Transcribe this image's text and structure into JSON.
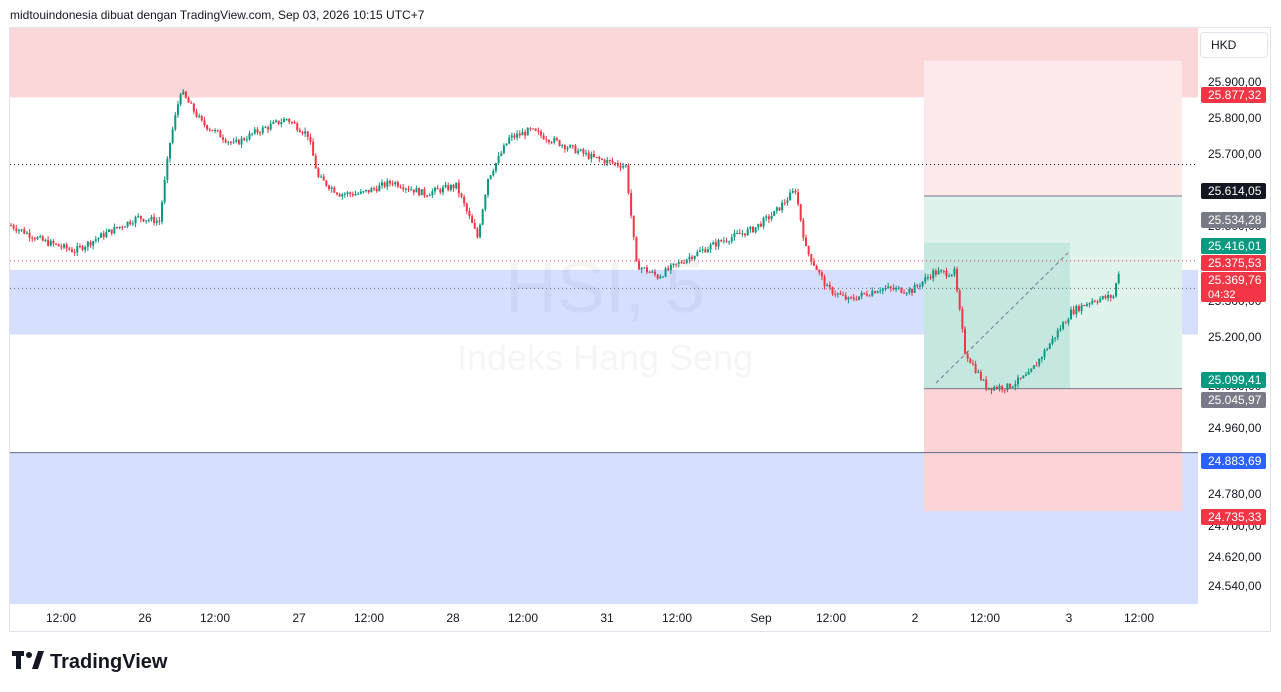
{
  "header": {
    "title": "midtouindonesia dibuat dengan TradingView.com, Sep 03, 2026 10:15 UTC+7"
  },
  "currency": "HKD",
  "watermark": {
    "symbol": "HSI, 5",
    "name": "Indeks Hang Seng"
  },
  "footer": {
    "logo_text": "TradingView"
  },
  "colors": {
    "up": "#089981",
    "down": "#f23645",
    "supply_zone": "#fcd7da",
    "demand_zone": "#d6e0fe",
    "target_zone": "#dff2ec",
    "stop_zone": "#fcd3d6"
  },
  "chart_data": {
    "type": "candlestick",
    "x_tick_labels": [
      "12:00",
      "26",
      "12:00",
      "27",
      "12:00",
      "28",
      "12:00",
      "31",
      "12:00",
      "Sep",
      "12:00",
      "2",
      "12:00",
      "3",
      "12:00"
    ],
    "y_tick_labels": [
      "25.900,00",
      "25.800,00",
      "25.700,00",
      "25.500,00",
      "25.300,00",
      "25.200,00",
      "25.000,00",
      "24.960,00",
      "24.880,00",
      "24.780,00",
      "24.700,00",
      "24.620,00",
      "24.540,00"
    ],
    "ylim": [
      24500,
      25960
    ],
    "price_labels": [
      {
        "text": "25.877,32",
        "value": 25877.32,
        "color": "#f23645"
      },
      {
        "text": "25.614,05",
        "value": 25614.05,
        "color": "#131722"
      },
      {
        "text": "25.534,28",
        "value": 25534.28,
        "color": "#787b86"
      },
      {
        "text": "25.416,01",
        "value": 25416.01,
        "color": "#089981"
      },
      {
        "text": "25.375,53",
        "value": 25375.53,
        "color": "#f23645"
      },
      {
        "text": "25.369,76",
        "value": 25369.76,
        "color": "#f23645",
        "sub": "04:32"
      },
      {
        "text": "25.099,41",
        "value": 25099.41,
        "color": "#089981"
      },
      {
        "text": "25.045,97",
        "value": 25045.97,
        "color": "#787b86"
      },
      {
        "text": "24.883,69",
        "value": 24883.69,
        "color": "#2962ff"
      },
      {
        "text": "24.735,33",
        "value": 24735.33,
        "color": "#f23645"
      }
    ],
    "zones": [
      {
        "name": "supply-zone",
        "from": 25784,
        "to": 25960
      },
      {
        "name": "demand-zone-upper",
        "from": 25183,
        "to": 25347
      },
      {
        "name": "demand-zone-lower",
        "from": 24500,
        "to": 24883.69
      }
    ],
    "path": [
      [
        0,
        25460
      ],
      [
        3,
        25420
      ],
      [
        6,
        25395
      ],
      [
        9,
        25440
      ],
      [
        12,
        25480
      ],
      [
        14,
        25470
      ],
      [
        15,
        25670
      ],
      [
        16,
        25800
      ],
      [
        18,
        25720
      ],
      [
        21,
        25665
      ],
      [
        23,
        25695
      ],
      [
        26,
        25730
      ],
      [
        28,
        25690
      ],
      [
        29,
        25580
      ],
      [
        31,
        25540
      ],
      [
        33,
        25540
      ],
      [
        36,
        25570
      ],
      [
        39,
        25540
      ],
      [
        42,
        25560
      ],
      [
        44,
        25430
      ],
      [
        45,
        25580
      ],
      [
        47,
        25680
      ],
      [
        49,
        25700
      ],
      [
        52,
        25665
      ],
      [
        55,
        25630
      ],
      [
        58,
        25610
      ],
      [
        59,
        25360
      ],
      [
        61,
        25330
      ],
      [
        64,
        25380
      ],
      [
        67,
        25420
      ],
      [
        70,
        25450
      ],
      [
        72,
        25490
      ],
      [
        74,
        25550
      ],
      [
        75,
        25400
      ],
      [
        77,
        25300
      ],
      [
        79,
        25270
      ],
      [
        82,
        25300
      ],
      [
        85,
        25295
      ],
      [
        87,
        25340
      ],
      [
        89,
        25340
      ],
      [
        90,
        25140
      ],
      [
        92,
        25050
      ],
      [
        94,
        25050
      ],
      [
        96,
        25080
      ],
      [
        98,
        25160
      ],
      [
        100,
        25240
      ],
      [
        102,
        25270
      ],
      [
        104,
        25280
      ],
      [
        106,
        25530
      ],
      [
        108,
        25460
      ],
      [
        110,
        25390
      ],
      [
        111,
        25380
      ]
    ]
  }
}
